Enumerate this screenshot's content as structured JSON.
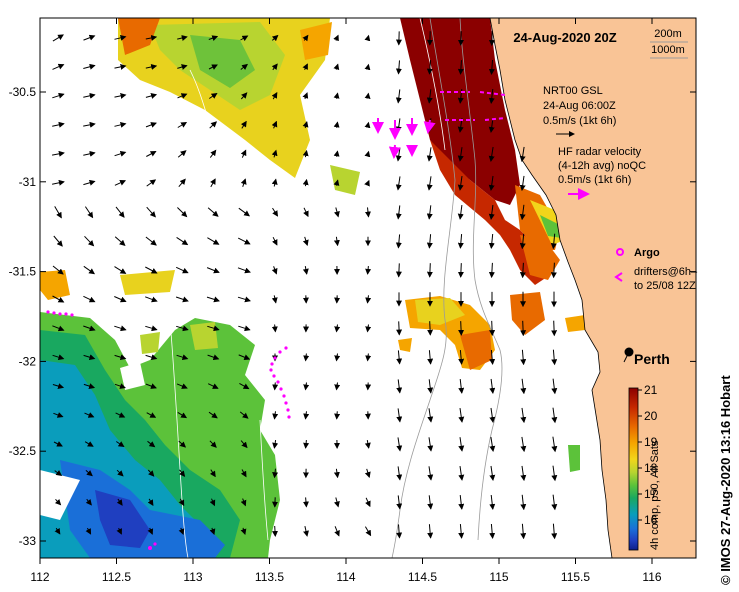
{
  "title": "24-Aug-2020 20Z",
  "depth_contours": [
    "200m",
    "1000m"
  ],
  "legend": {
    "gsl_name": "NRT00 GSL",
    "gsl_time": "24-Aug 06:00Z",
    "gsl_scale": "0.5m/s (1kt 6h)",
    "radar_name": "HF radar velocity",
    "radar_avg": "(4-12h avg) noQC",
    "radar_scale": "0.5m/s (1kt 6h)",
    "argo": "Argo",
    "drifters_line1": "drifters@6h–",
    "drifters_line2": "to 25/08 12Z"
  },
  "place": "Perth",
  "colorbar": {
    "label": "4h comp, p50, All Sats",
    "ticks": [
      "21",
      "20",
      "19",
      "18",
      "17",
      "16"
    ],
    "colors": [
      "#8b0000",
      "#c62800",
      "#e86a00",
      "#f5a500",
      "#f2d51a",
      "#b8d430",
      "#5cc23a",
      "#19a860",
      "#0a9dbc",
      "#1a6fd8",
      "#1f3fc0",
      "#0d1f8a"
    ]
  },
  "credit": "© IMOS 27-Aug-2020 13:16 Hobart",
  "axes": {
    "x_ticks": [
      "112",
      "112.5",
      "113",
      "113.5",
      "114",
      "114.5",
      "115",
      "115.5",
      "116"
    ],
    "y_ticks": [
      "-30.5",
      "-31",
      "-31.5",
      "-32",
      "-32.5",
      "-33"
    ]
  },
  "colors": {
    "land": "#f9c496",
    "arrow": "#000000",
    "drifter": "#ff00ff",
    "radar": "#ff00ff"
  }
}
